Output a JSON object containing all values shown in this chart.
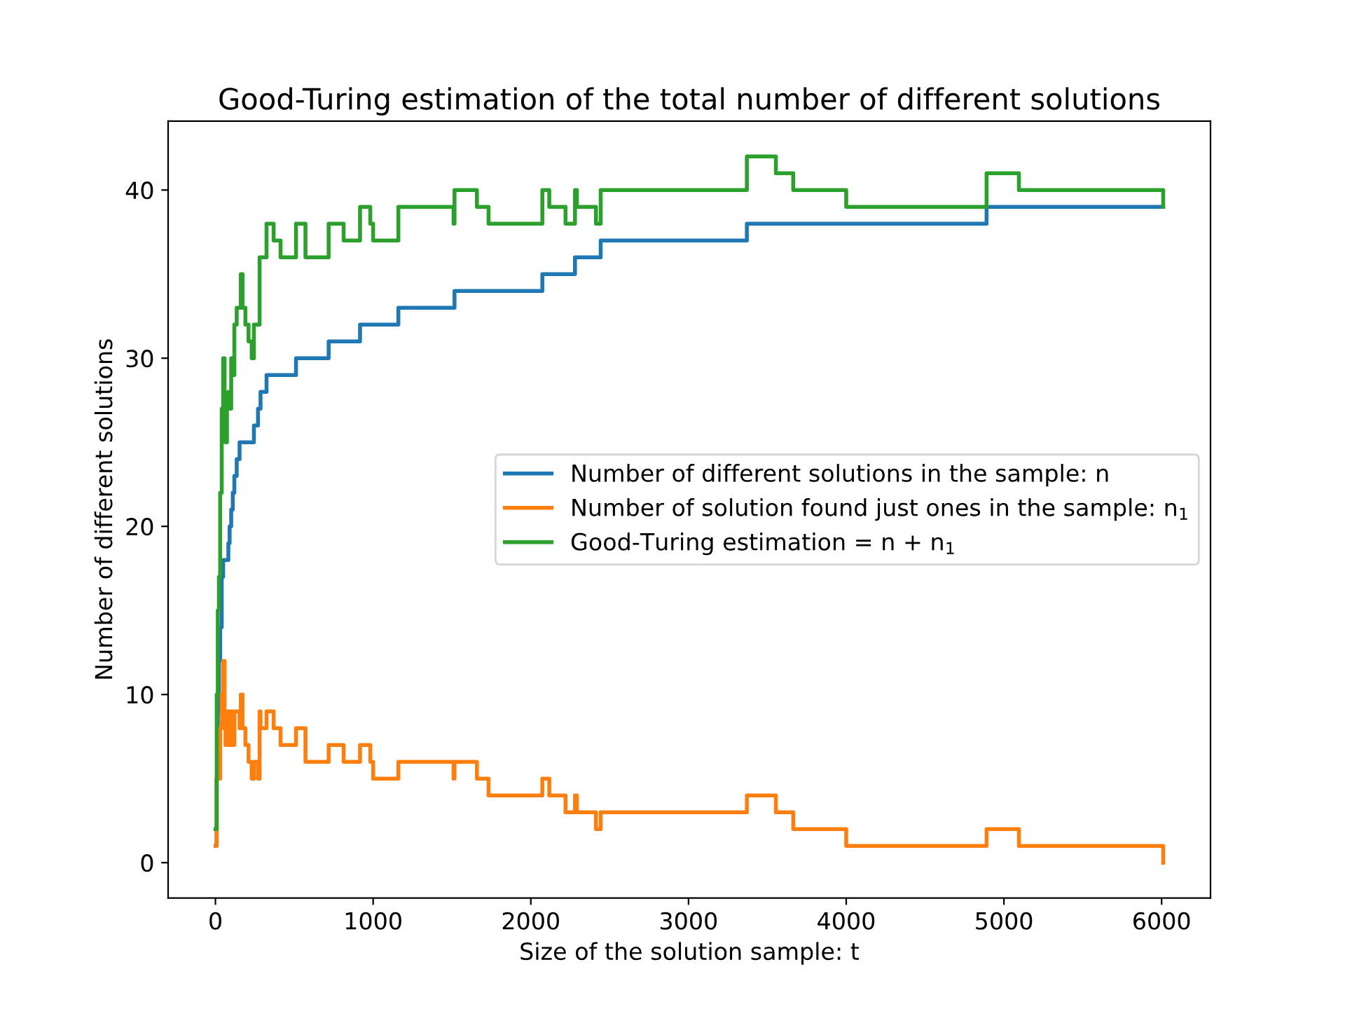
{
  "chart_data": {
    "type": "step",
    "title": "Good-Turing estimation of the total number of different solutions",
    "xlabel": "Size of the solution sample: t",
    "ylabel": "Number of different solutions",
    "x": [
      1,
      8,
      15,
      22,
      30,
      40,
      49,
      58,
      64,
      73,
      82,
      90,
      100,
      110,
      120,
      135,
      153,
      161,
      172,
      190,
      210,
      230,
      244,
      270,
      280,
      286,
      324,
      369,
      413,
      511,
      571,
      718,
      813,
      917,
      982,
      1000,
      1160,
      1510,
      1516,
      1658,
      1732,
      2073,
      2117,
      2220,
      2280,
      2292,
      2300,
      2413,
      2443,
      3370,
      3554,
      3664,
      4000,
      4890,
      5095,
      6010
    ],
    "series": [
      {
        "name": "Number of different solutions in the sample: n",
        "color": "#1f77b4",
        "values": [
          1,
          5,
          9,
          12,
          14,
          17,
          18,
          18,
          18,
          18,
          19,
          20,
          21,
          22,
          23,
          24,
          25,
          25,
          25,
          25,
          25,
          25,
          26,
          27,
          27,
          28,
          29,
          29,
          29,
          30,
          30,
          31,
          31,
          32,
          32,
          32,
          33,
          33,
          34,
          34,
          34,
          35,
          35,
          35,
          36,
          36,
          36,
          36,
          37,
          38,
          38,
          38,
          38,
          39,
          39,
          39
        ]
      },
      {
        "name": "Number of solution found just ones in the sample: n$_{1}$",
        "color": "#ff7f0e",
        "values": [
          1,
          5,
          6,
          5,
          8,
          10,
          12,
          8,
          7,
          9,
          9,
          7,
          9,
          7,
          9,
          9,
          8,
          10,
          8,
          7,
          6,
          5,
          6,
          5,
          9,
          8,
          9,
          8,
          7,
          8,
          6,
          7,
          6,
          7,
          6,
          5,
          6,
          5,
          6,
          5,
          4,
          5,
          4,
          3,
          4,
          3,
          3,
          2,
          3,
          4,
          3,
          2,
          1,
          2,
          1,
          0
        ]
      },
      {
        "name": "Good-Turing estimation = n + n$_{1}$",
        "color": "#2ca02c",
        "values": [
          2,
          10,
          15,
          17,
          22,
          27,
          30,
          26,
          25,
          27,
          28,
          27,
          30,
          29,
          32,
          33,
          33,
          35,
          33,
          32,
          31,
          30,
          32,
          32,
          36,
          36,
          38,
          37,
          36,
          38,
          36,
          38,
          37,
          39,
          38,
          37,
          39,
          38,
          40,
          39,
          38,
          40,
          39,
          38,
          40,
          39,
          39,
          38,
          40,
          42,
          41,
          40,
          39,
          41,
          40,
          39
        ]
      }
    ],
    "xlim": [
      -300,
      6310
    ],
    "ylim": [
      -2.1,
      44.1
    ],
    "xticks": [
      0,
      1000,
      2000,
      3000,
      4000,
      5000,
      6000
    ],
    "yticks": [
      0,
      10,
      20,
      30,
      40
    ],
    "grid": false,
    "legend": "center right"
  }
}
